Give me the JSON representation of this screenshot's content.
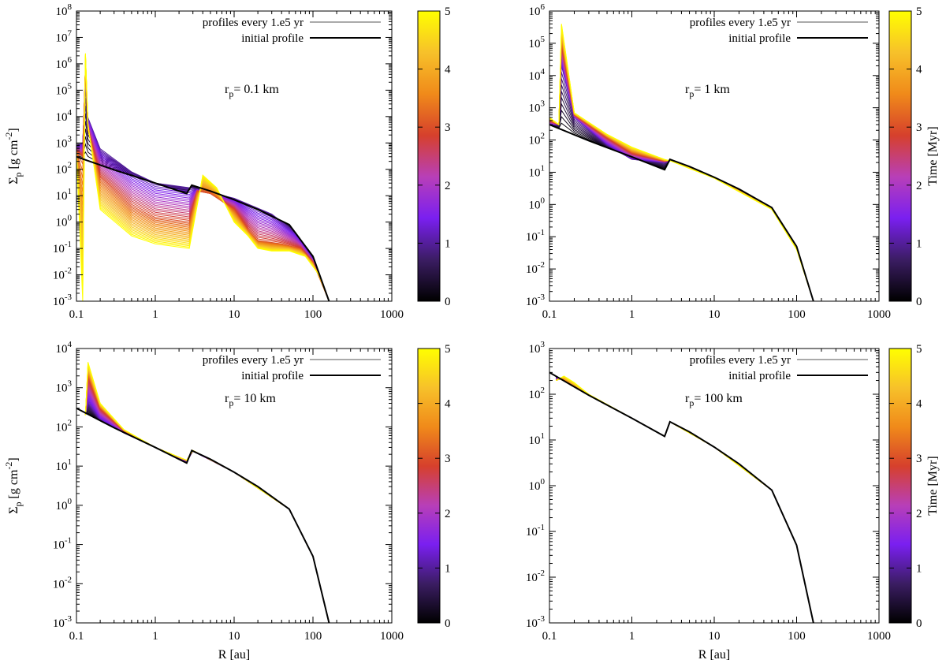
{
  "figure": {
    "colorbar_ticks": [
      "0",
      "1",
      "2",
      "3",
      "4",
      "5"
    ],
    "colorbar_label": "Time [Myr]",
    "colormap": [
      "#000000",
      "#3b1d63",
      "#7a1ff0",
      "#b83fb8",
      "#d6402c",
      "#f08a1a",
      "#f7c12a",
      "#ffff00"
    ],
    "initial_color": "#000000"
  },
  "chart_data": [
    {
      "type": "line",
      "panel": "top-left",
      "annotation": {
        "prefix": "r",
        "sub": "p",
        "suffix": "= 0.1 km"
      },
      "ylabel": {
        "main": "Σ",
        "sub": "p",
        "unit": " [g cm",
        "exp": "-2",
        "close": "]"
      },
      "xlabel": "",
      "xlim": [
        0.1,
        1000
      ],
      "ylim": [
        0.001,
        100000000
      ],
      "x_ticks": [
        "0.1",
        "1",
        "10",
        "100",
        "1000"
      ],
      "y_ticks": [
        {
          "m": "10",
          "e": "-3"
        },
        {
          "m": "10",
          "e": "-2"
        },
        {
          "m": "10",
          "e": "-1"
        },
        {
          "m": "10",
          "e": "0"
        },
        {
          "m": "10",
          "e": "1"
        },
        {
          "m": "10",
          "e": "2"
        },
        {
          "m": "10",
          "e": "3"
        },
        {
          "m": "10",
          "e": "4"
        },
        {
          "m": "10",
          "e": "5"
        },
        {
          "m": "10",
          "e": "6"
        },
        {
          "m": "10",
          "e": "7"
        },
        {
          "m": "10",
          "e": "8"
        }
      ],
      "legend": [
        "profiles every 1.e5 yr",
        "initial profile"
      ],
      "series": [
        {
          "name": "initial profile",
          "x": [
            0.1,
            0.3,
            1,
            2.5,
            2.9,
            5,
            10,
            20,
            50,
            100,
            160
          ],
          "y": [
            300,
            95,
            30,
            12,
            25,
            15,
            7,
            3,
            0.8,
            0.05,
            0.001
          ]
        },
        {
          "name": "t=1 Myr",
          "t": 1,
          "x": [
            0.1,
            0.12,
            0.13,
            0.14,
            0.2,
            0.5,
            1,
            2.7,
            3.2,
            10,
            30,
            60,
            100,
            160
          ],
          "y": [
            800,
            1000,
            200000,
            9000,
            600,
            80,
            30,
            20,
            18,
            8,
            2,
            0.4,
            0.04,
            0.001
          ]
        },
        {
          "name": "t=3 Myr",
          "t": 3,
          "x": [
            0.1,
            0.12,
            0.13,
            0.14,
            0.2,
            0.5,
            1,
            2.7,
            3.4,
            5,
            10,
            15,
            20,
            40,
            70,
            100,
            160
          ],
          "y": [
            500,
            300,
            1000000,
            3000,
            50,
            4,
            1.5,
            1,
            15,
            12,
            3,
            0.5,
            0.2,
            0.15,
            0.1,
            0.03,
            0.001
          ]
        },
        {
          "name": "t=5 Myr",
          "t": 5,
          "x": [
            0.1,
            0.12,
            0.13,
            0.14,
            0.2,
            0.5,
            1,
            2.7,
            4,
            6,
            10,
            15,
            20,
            30,
            50,
            80,
            120,
            160
          ],
          "y": [
            400,
            0.001,
            2500000,
            5000,
            3,
            0.3,
            0.15,
            0.1,
            60,
            20,
            1,
            0.3,
            0.1,
            0.08,
            0.08,
            0.05,
            0.01,
            0.001
          ]
        }
      ]
    },
    {
      "type": "line",
      "panel": "top-right",
      "annotation": {
        "prefix": "r",
        "sub": "p",
        "suffix": "= 1 km"
      },
      "ylabel": null,
      "xlabel": "",
      "xlim": [
        0.1,
        1000
      ],
      "ylim": [
        0.001,
        1000000
      ],
      "x_ticks": [
        "0.1",
        "1",
        "10",
        "100",
        "1000"
      ],
      "y_ticks": [
        {
          "m": "10",
          "e": "-3"
        },
        {
          "m": "10",
          "e": "-2"
        },
        {
          "m": "10",
          "e": "-1"
        },
        {
          "m": "10",
          "e": "0"
        },
        {
          "m": "10",
          "e": "1"
        },
        {
          "m": "10",
          "e": "2"
        },
        {
          "m": "10",
          "e": "3"
        },
        {
          "m": "10",
          "e": "4"
        },
        {
          "m": "10",
          "e": "5"
        },
        {
          "m": "10",
          "e": "6"
        }
      ],
      "legend": [
        "profiles every 1.e5 yr",
        "initial profile"
      ],
      "series": [
        {
          "name": "initial profile",
          "x": [
            0.1,
            0.3,
            1,
            2.5,
            2.9,
            5,
            10,
            20,
            50,
            100,
            160
          ],
          "y": [
            300,
            95,
            30,
            12,
            25,
            15,
            7,
            3,
            0.8,
            0.05,
            0.001
          ]
        },
        {
          "name": "t=1 Myr",
          "t": 1,
          "x": [
            0.1,
            0.13,
            0.14,
            0.2,
            0.5,
            1,
            2.5,
            3,
            10,
            50,
            100,
            160
          ],
          "y": [
            300,
            300,
            20000,
            500,
            70,
            25,
            20,
            23,
            7,
            0.8,
            0.05,
            0.001
          ]
        },
        {
          "name": "t=3 Myr",
          "t": 3,
          "x": [
            0.1,
            0.13,
            0.14,
            0.2,
            0.5,
            1,
            2.5,
            3,
            10,
            50,
            100,
            160
          ],
          "y": [
            400,
            300,
            100000,
            600,
            120,
            40,
            22,
            24,
            7,
            0.8,
            0.05,
            0.001
          ]
        },
        {
          "name": "t=5 Myr",
          "t": 5,
          "x": [
            0.1,
            0.13,
            0.14,
            0.2,
            0.5,
            1,
            2.5,
            3,
            10,
            50,
            100,
            160
          ],
          "y": [
            500,
            300,
            400000,
            700,
            150,
            60,
            25,
            22,
            6.5,
            0.7,
            0.04,
            0.001
          ]
        }
      ]
    },
    {
      "type": "line",
      "panel": "bottom-left",
      "annotation": {
        "prefix": "r",
        "sub": "p",
        "suffix": "= 10 km"
      },
      "ylabel": {
        "main": "Σ",
        "sub": "p",
        "unit": " [g cm",
        "exp": "-2",
        "close": "]"
      },
      "xlabel": "R [au]",
      "xlim": [
        0.1,
        1000
      ],
      "ylim": [
        0.001,
        10000
      ],
      "x_ticks": [
        "0.1",
        "1",
        "10",
        "100",
        "1000"
      ],
      "y_ticks": [
        {
          "m": "10",
          "e": "-3"
        },
        {
          "m": "10",
          "e": "-2"
        },
        {
          "m": "10",
          "e": "-1"
        },
        {
          "m": "10",
          "e": "0"
        },
        {
          "m": "10",
          "e": "1"
        },
        {
          "m": "10",
          "e": "2"
        },
        {
          "m": "10",
          "e": "3"
        },
        {
          "m": "10",
          "e": "4"
        }
      ],
      "legend": [
        "profiles every 1.e5 yr",
        "initial profile"
      ],
      "series": [
        {
          "name": "initial profile",
          "x": [
            0.1,
            0.3,
            1,
            2.5,
            2.9,
            5,
            10,
            20,
            50,
            100,
            160
          ],
          "y": [
            300,
            95,
            30,
            12,
            25,
            15,
            7,
            3,
            0.8,
            0.05,
            0.001
          ]
        },
        {
          "name": "t=1 Myr",
          "t": 1,
          "x": [
            0.13,
            0.14,
            0.2,
            0.4,
            1,
            2.5,
            3,
            10,
            50,
            100,
            160
          ],
          "y": [
            200,
            400,
            150,
            70,
            30,
            13,
            24,
            7,
            0.8,
            0.05,
            0.001
          ]
        },
        {
          "name": "t=3 Myr",
          "t": 3,
          "x": [
            0.13,
            0.14,
            0.2,
            0.4,
            1,
            2.5,
            3,
            10,
            50,
            100,
            160
          ],
          "y": [
            200,
            2000,
            300,
            80,
            30,
            14,
            25,
            7,
            0.8,
            0.05,
            0.001
          ]
        },
        {
          "name": "t=5 Myr",
          "t": 5,
          "x": [
            0.13,
            0.14,
            0.2,
            0.4,
            1,
            2.5,
            3,
            10,
            50,
            100,
            160
          ],
          "y": [
            200,
            4500,
            400,
            85,
            30,
            14,
            25,
            7,
            0.8,
            0.05,
            0.001
          ]
        }
      ]
    },
    {
      "type": "line",
      "panel": "bottom-right",
      "annotation": {
        "prefix": "r",
        "sub": "p",
        "suffix": "= 100 km"
      },
      "ylabel": null,
      "xlabel": "R [au]",
      "xlim": [
        0.1,
        1000
      ],
      "ylim": [
        0.001,
        1000
      ],
      "x_ticks": [
        "0.1",
        "1",
        "10",
        "100",
        "1000"
      ],
      "y_ticks": [
        {
          "m": "10",
          "e": "-3"
        },
        {
          "m": "10",
          "e": "-2"
        },
        {
          "m": "10",
          "e": "-1"
        },
        {
          "m": "10",
          "e": "0"
        },
        {
          "m": "10",
          "e": "1"
        },
        {
          "m": "10",
          "e": "2"
        },
        {
          "m": "10",
          "e": "3"
        }
      ],
      "legend": [
        "profiles every 1.e5 yr",
        "initial profile"
      ],
      "series": [
        {
          "name": "initial profile",
          "x": [
            0.1,
            0.3,
            1,
            2.5,
            2.9,
            5,
            10,
            20,
            50,
            100,
            160
          ],
          "y": [
            300,
            95,
            30,
            12,
            25,
            15,
            7,
            3,
            0.8,
            0.05,
            0.001
          ]
        },
        {
          "name": "t=3 Myr",
          "t": 3,
          "x": [
            0.12,
            0.14,
            0.18,
            0.3,
            1,
            2.5,
            2.9,
            10,
            50,
            100,
            160
          ],
          "y": [
            200,
            220,
            160,
            95,
            30,
            12,
            25,
            7,
            0.8,
            0.05,
            0.001
          ]
        },
        {
          "name": "t=5 Myr",
          "t": 5,
          "x": [
            0.12,
            0.15,
            0.2,
            0.3,
            1,
            2.5,
            2.9,
            10,
            50,
            100,
            160
          ],
          "y": [
            200,
            250,
            180,
            100,
            30,
            12,
            25,
            7,
            0.8,
            0.05,
            0.001
          ]
        }
      ]
    }
  ]
}
